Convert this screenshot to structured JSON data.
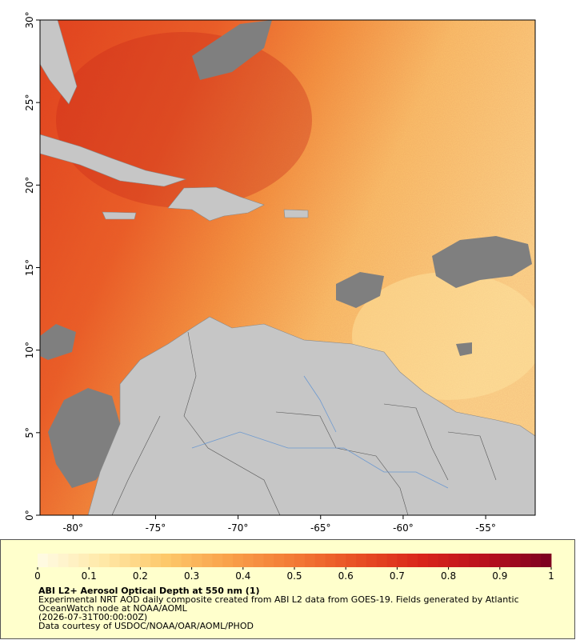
{
  "map": {
    "xlim": [
      -82,
      -52
    ],
    "ylim": [
      0,
      30
    ],
    "lon_ticks": [
      {
        "value": -80,
        "label": "-80°"
      },
      {
        "value": -75,
        "label": "-75°"
      },
      {
        "value": -70,
        "label": "-70°"
      },
      {
        "value": -65,
        "label": "-65°"
      },
      {
        "value": -60,
        "label": "-60°"
      },
      {
        "value": -55,
        "label": "-55°"
      }
    ],
    "lat_ticks": [
      {
        "value": 0,
        "label": "0°"
      },
      {
        "value": 5,
        "label": "5°"
      },
      {
        "value": 10,
        "label": "10°"
      },
      {
        "value": 15,
        "label": "15°"
      },
      {
        "value": 20,
        "label": "20°"
      },
      {
        "value": 25,
        "label": "25°"
      },
      {
        "value": 30,
        "label": "30°"
      }
    ]
  },
  "colorbar": {
    "range": [
      0,
      1
    ],
    "ticks": [
      0,
      0.1,
      0.2,
      0.3,
      0.4,
      0.5,
      0.6,
      0.7,
      0.8,
      0.9,
      1
    ],
    "colors": [
      "#fffbe6",
      "#ffe9a8",
      "#fdc86a",
      "#f9a04a",
      "#f37a35",
      "#e84f24",
      "#d8241a",
      "#b8101e",
      "#7a0020"
    ]
  },
  "caption": {
    "title": "ABI L2+ Aerosol Optical Depth at 550 nm (1)",
    "lines": [
      "Experimental NRT AOD daily composite created from ABI L2 data from GOES-19. Fields generated by Atlantic",
      "OceanWatch node at NOAA/AOML",
      "(2026-07-31T00:00:00Z)",
      "Data courtesy of USDOC/NOAA/OAR/AOML/PHOD"
    ]
  }
}
